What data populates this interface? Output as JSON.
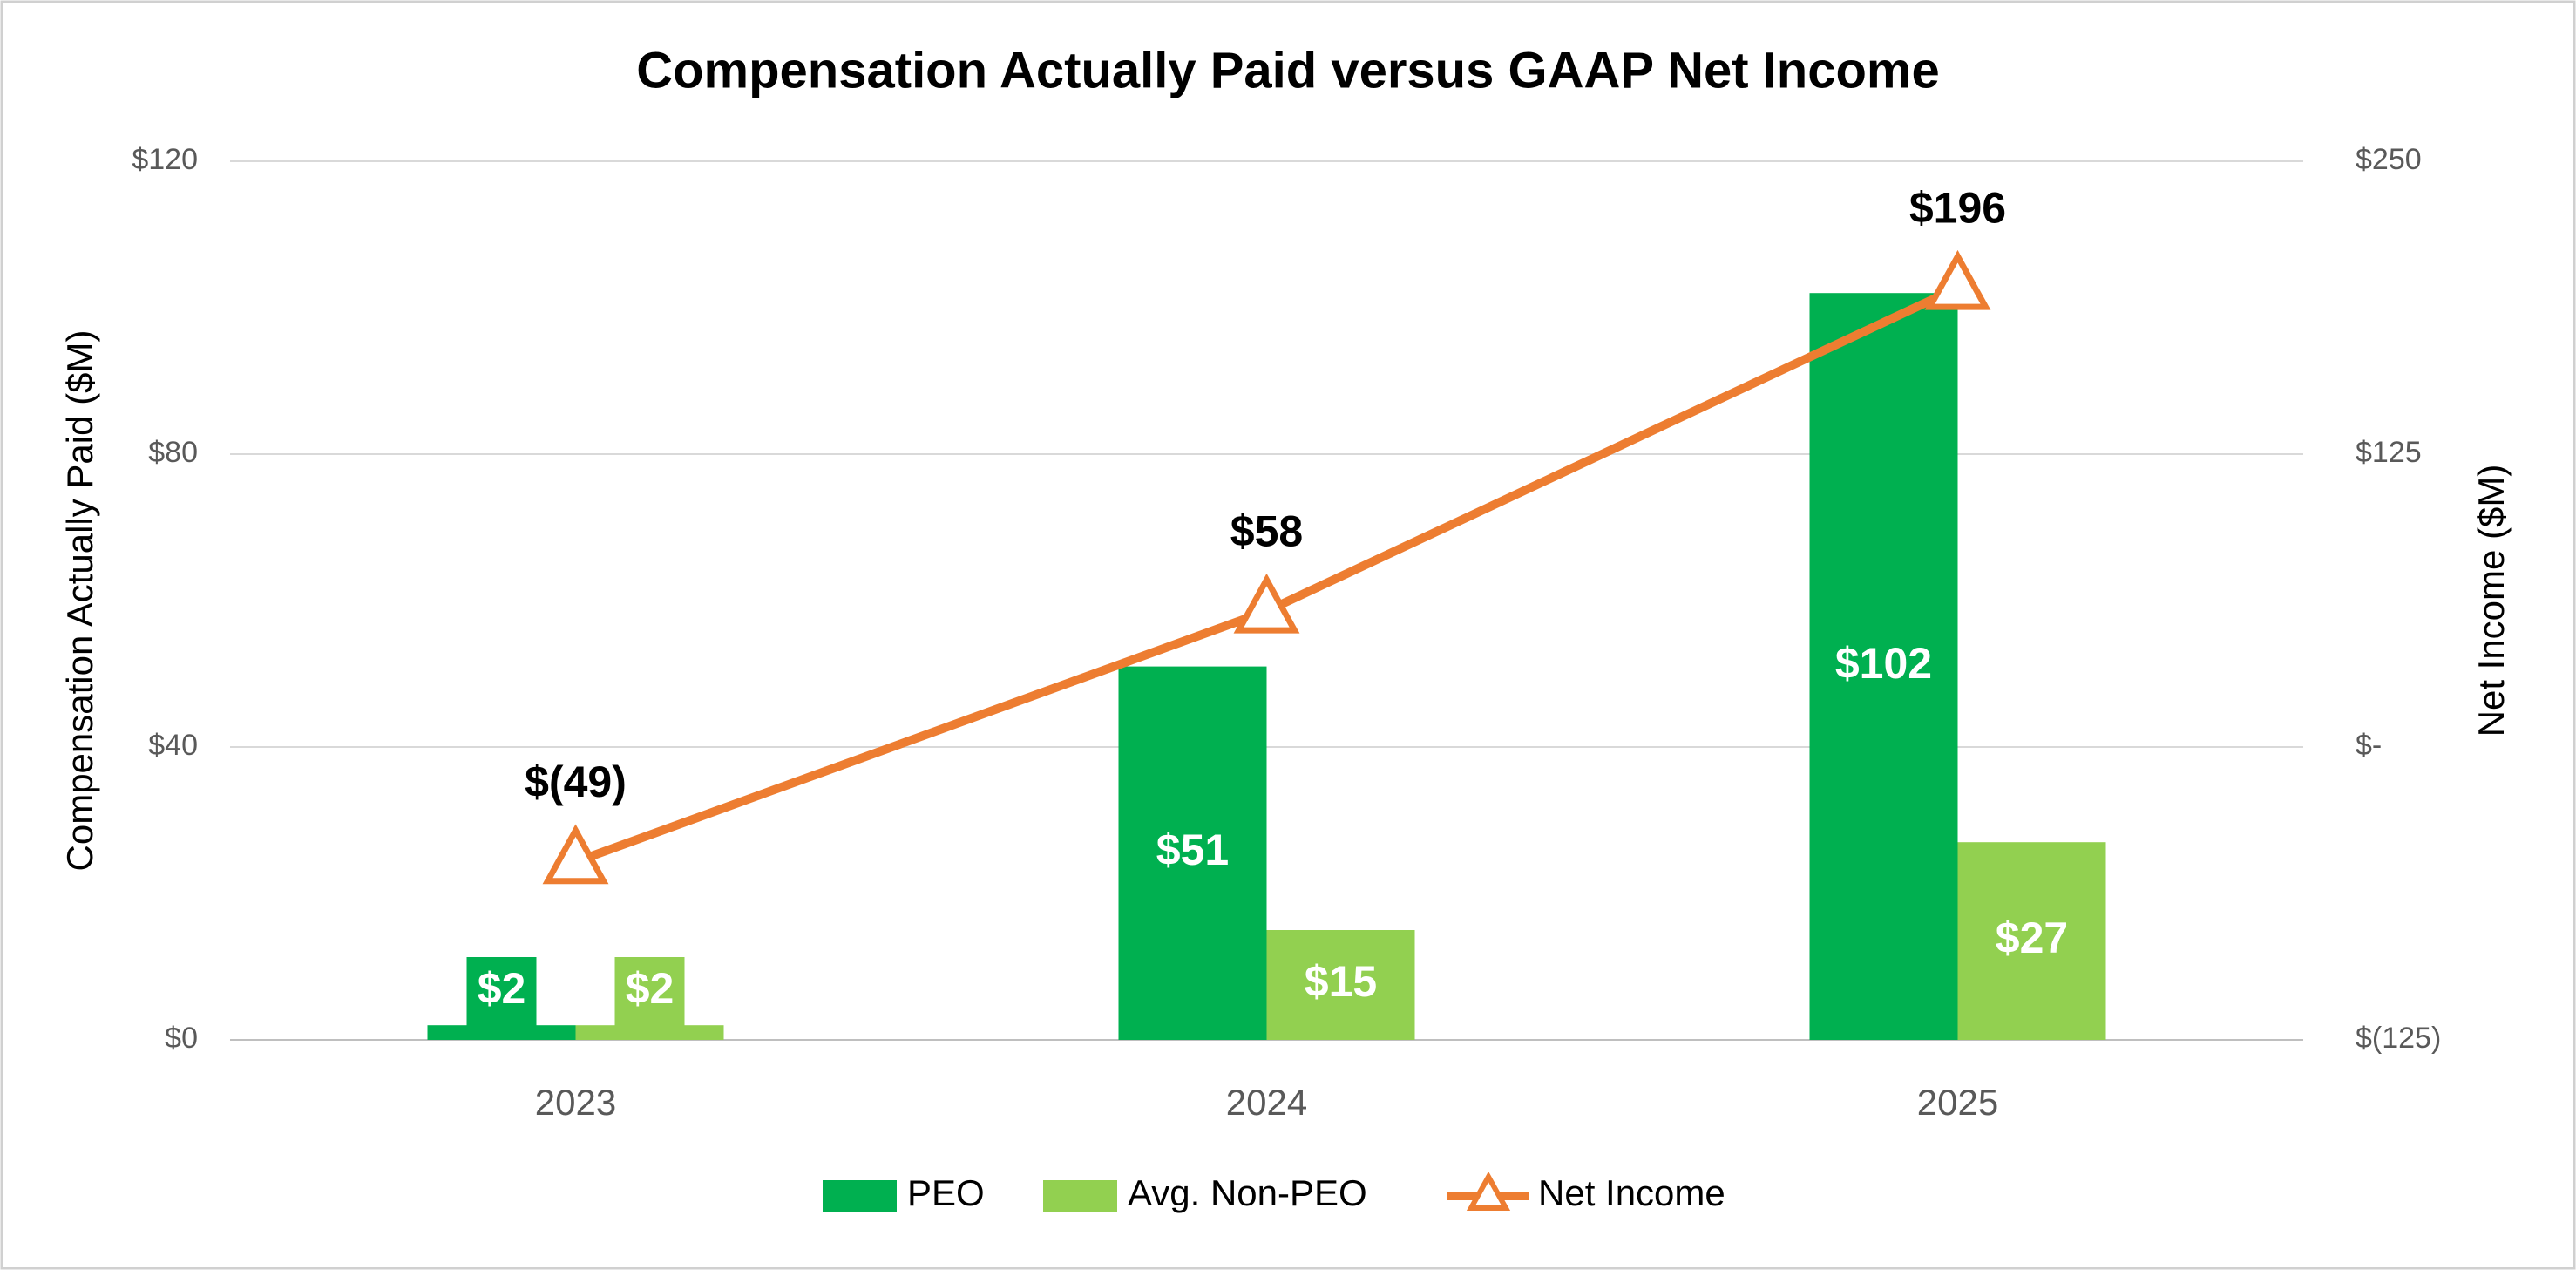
{
  "chart_data": {
    "type": "bar",
    "title": "Compensation Actually Paid versus GAAP Net Income",
    "y_label": "Compensation Actually Paid ($M)",
    "y2_label": "Net Income ($M)",
    "categories": [
      "2023",
      "2024",
      "2025"
    ],
    "series": [
      {
        "name": "PEO",
        "color": "#00b050",
        "values": [
          2,
          51,
          102
        ],
        "value_labels": [
          "$2",
          "$51",
          "$102"
        ]
      },
      {
        "name": "Avg. Non-PEO",
        "color": "#92d050",
        "values": [
          2,
          15,
          27
        ],
        "value_labels": [
          "$2",
          "$15",
          "$27"
        ]
      },
      {
        "name": "Net Income",
        "type": "line",
        "axis": "y2",
        "color": "#ed7d31",
        "values": [
          -49,
          58,
          196
        ],
        "value_labels": [
          "$(49)",
          "$58",
          "$196"
        ]
      }
    ],
    "ylim": [
      0,
      120
    ],
    "yticks": [
      {
        "value": 0,
        "label": "$0"
      },
      {
        "value": 40,
        "label": "$40"
      },
      {
        "value": 80,
        "label": "$80"
      },
      {
        "value": 120,
        "label": "$120"
      }
    ],
    "y2lim": [
      -125,
      250
    ],
    "y2ticks": [
      {
        "value": -125,
        "label": "$(125)"
      },
      {
        "value": 0,
        "label": "$-"
      },
      {
        "value": 125,
        "label": "$125"
      },
      {
        "value": 250,
        "label": "$250"
      }
    ],
    "grid": true,
    "legend": "bottom"
  }
}
